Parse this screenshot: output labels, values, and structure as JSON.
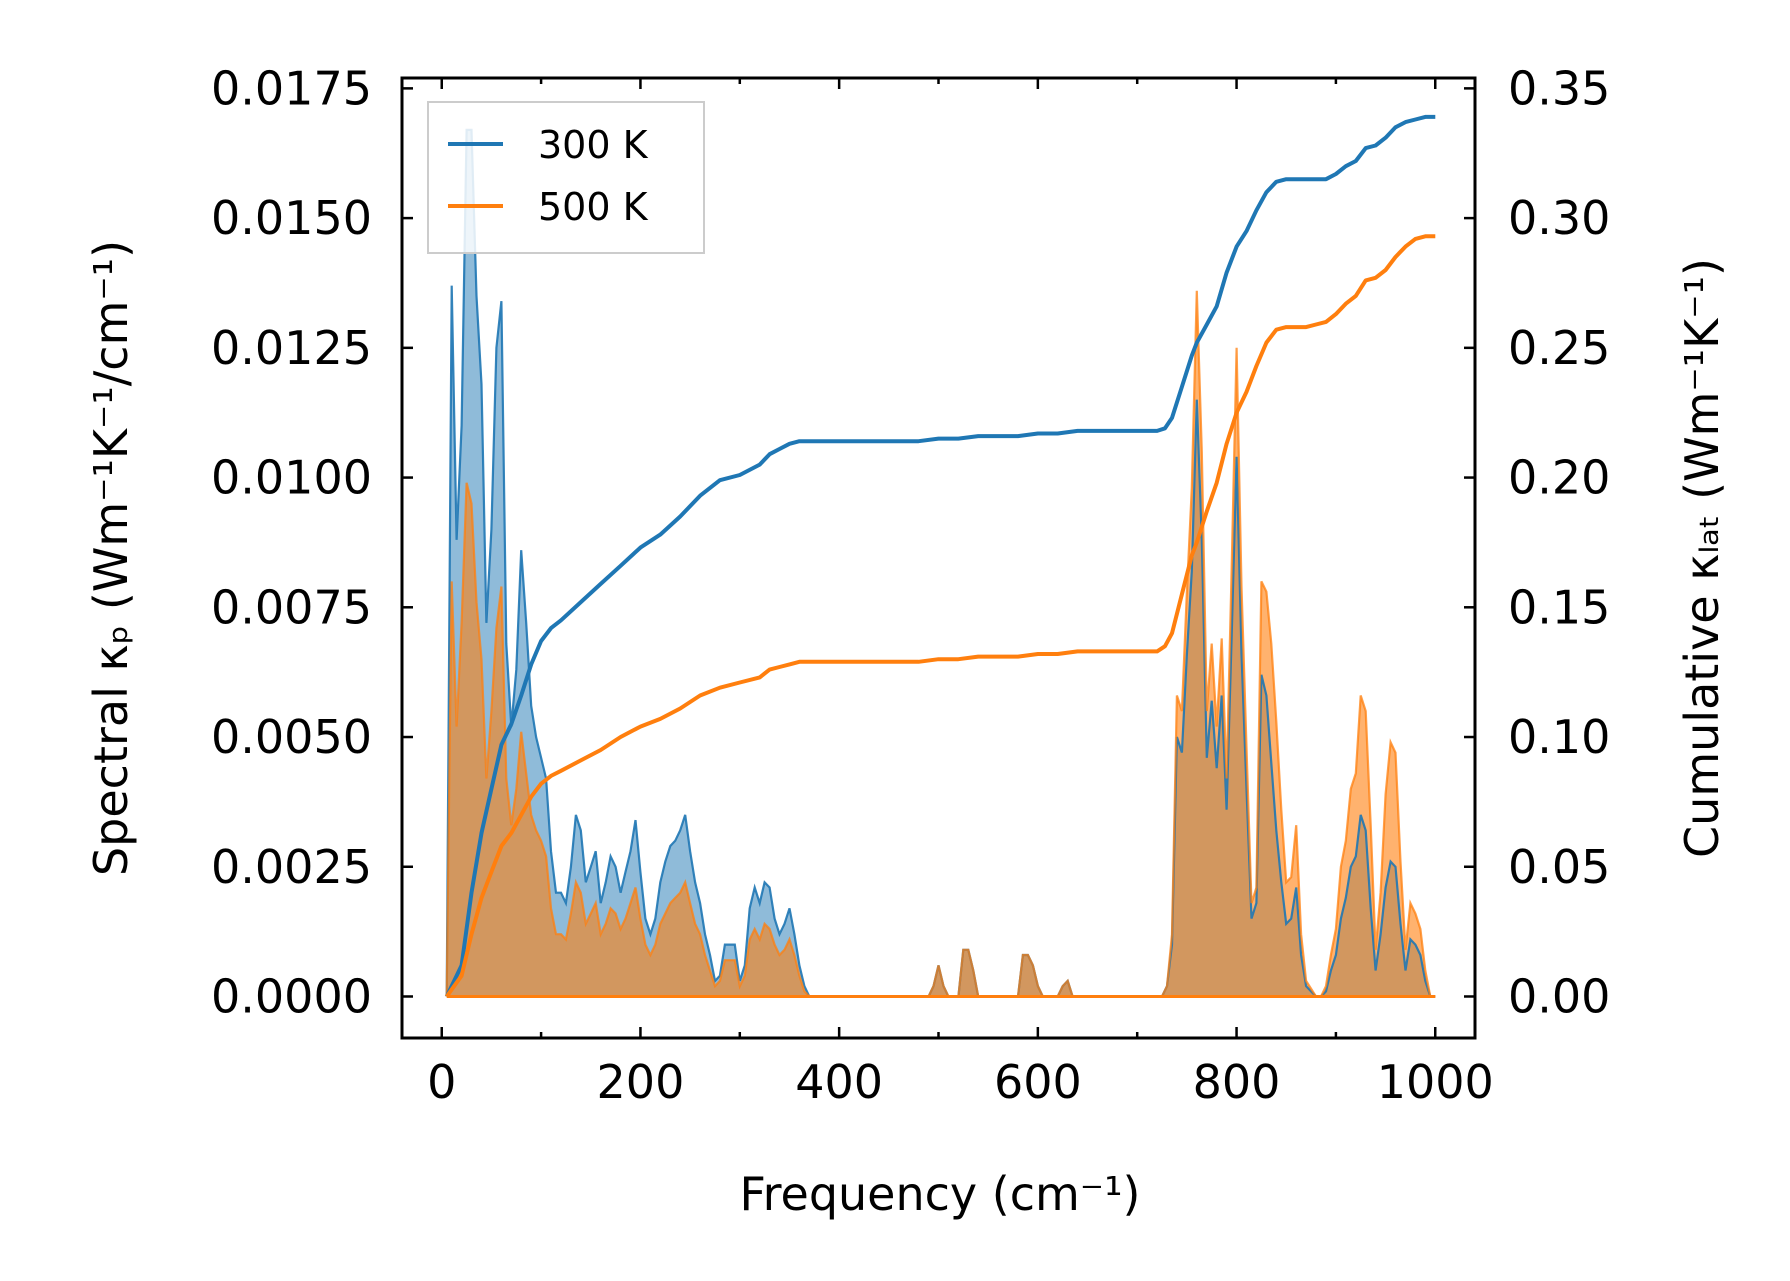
{
  "chart_data": {
    "type": "line",
    "xlabel": "Frequency (cm⁻¹)",
    "ylabel_left": "Spectral κₚ (Wm⁻¹K⁻¹/cm⁻¹)",
    "ylabel_right": "Cumulative κₗₐₜ (Wm⁻¹K⁻¹)",
    "xlim": [
      -40,
      1040
    ],
    "ylim_left": [
      -0.0008,
      0.0177
    ],
    "ylim_right": [
      -0.016,
      0.354
    ],
    "xticks": [
      0,
      200,
      400,
      600,
      800,
      1000
    ],
    "xtick_labels": [
      "0",
      "200",
      "400",
      "600",
      "800",
      "1000"
    ],
    "yticks_left": [
      0,
      0.0025,
      0.005,
      0.0075,
      0.01,
      0.0125,
      0.015,
      0.0175
    ],
    "ytick_labels_left": [
      "0.0000",
      "0.0025",
      "0.0050",
      "0.0075",
      "0.0100",
      "0.0125",
      "0.0150",
      "0.0175"
    ],
    "yticks_right": [
      0,
      0.05,
      0.1,
      0.15,
      0.2,
      0.25,
      0.3,
      0.35
    ],
    "ytick_labels_right": [
      "0.00",
      "0.05",
      "0.10",
      "0.15",
      "0.20",
      "0.25",
      "0.30",
      "0.35"
    ],
    "legend": {
      "position": "upper-left",
      "entries": [
        "300 K",
        "500 K"
      ]
    },
    "colors": {
      "s300": "#1f77b4",
      "s500": "#ff7f0e",
      "overlap": "#c49a6c"
    },
    "spectral": [
      {
        "name": "300 K",
        "x": [
          5,
          10,
          15,
          20,
          25,
          30,
          35,
          40,
          45,
          50,
          55,
          60,
          65,
          70,
          75,
          80,
          85,
          90,
          95,
          100,
          105,
          110,
          115,
          120,
          125,
          130,
          135,
          140,
          145,
          150,
          155,
          160,
          165,
          170,
          175,
          180,
          185,
          190,
          195,
          200,
          205,
          210,
          215,
          220,
          225,
          230,
          235,
          240,
          245,
          250,
          255,
          260,
          265,
          270,
          275,
          280,
          285,
          290,
          295,
          300,
          305,
          310,
          315,
          320,
          325,
          330,
          335,
          340,
          345,
          350,
          355,
          360,
          365,
          370,
          375,
          380,
          490,
          495,
          500,
          505,
          510,
          520,
          525,
          530,
          535,
          540,
          545,
          550,
          580,
          585,
          590,
          595,
          600,
          605,
          610,
          620,
          625,
          630,
          635,
          640,
          645,
          650,
          725,
          730,
          735,
          740,
          745,
          750,
          755,
          760,
          765,
          770,
          775,
          780,
          785,
          790,
          795,
          800,
          805,
          810,
          815,
          820,
          825,
          830,
          835,
          840,
          845,
          850,
          855,
          860,
          865,
          870,
          880,
          885,
          890,
          895,
          900,
          905,
          910,
          915,
          920,
          925,
          930,
          935,
          940,
          945,
          950,
          955,
          960,
          965,
          970,
          975,
          980,
          985,
          990,
          995,
          1000
        ],
        "y": [
          0,
          0.0137,
          0.0088,
          0.011,
          0.0167,
          0.0167,
          0.0135,
          0.0118,
          0.0072,
          0.009,
          0.0125,
          0.0134,
          0.0068,
          0.0052,
          0.0063,
          0.0086,
          0.0072,
          0.0056,
          0.005,
          0.0046,
          0.0042,
          0.0028,
          0.002,
          0.002,
          0.0018,
          0.0025,
          0.0035,
          0.0032,
          0.0022,
          0.0025,
          0.0028,
          0.0018,
          0.0022,
          0.0027,
          0.0025,
          0.002,
          0.0024,
          0.0028,
          0.0034,
          0.0024,
          0.0015,
          0.0012,
          0.0015,
          0.0022,
          0.0026,
          0.0029,
          0.003,
          0.0032,
          0.0035,
          0.0028,
          0.0022,
          0.0018,
          0.0012,
          0.0008,
          0.0003,
          0.0004,
          0.001,
          0.001,
          0.001,
          0.0003,
          0.0006,
          0.0017,
          0.0021,
          0.0018,
          0.0022,
          0.0021,
          0.0015,
          0.0012,
          0.0014,
          0.0017,
          0.0012,
          0.0006,
          0.0002,
          0,
          0,
          0,
          0,
          0.0002,
          0.0006,
          0.0002,
          0,
          0,
          0.0009,
          0.0009,
          0.0005,
          0,
          0,
          0,
          0,
          0.0008,
          0.0008,
          0.0006,
          0.0002,
          0,
          0,
          0,
          0.0002,
          0.0003,
          0,
          0,
          0,
          0,
          0,
          0.0002,
          0.001,
          0.005,
          0.0047,
          0.0066,
          0.0082,
          0.0115,
          0.0088,
          0.0046,
          0.0057,
          0.0044,
          0.0058,
          0.0036,
          0.0069,
          0.0104,
          0.0066,
          0.004,
          0.0015,
          0.0018,
          0.0062,
          0.0058,
          0.0045,
          0.0032,
          0.0022,
          0.0014,
          0.0015,
          0.0021,
          0.0008,
          0.0002,
          0,
          0,
          0.0001,
          0.0005,
          0.0008,
          0.0015,
          0.0019,
          0.0025,
          0.0027,
          0.0035,
          0.0032,
          0.0017,
          0.0005,
          0.0012,
          0.0021,
          0.0026,
          0.0025,
          0.0014,
          0.0005,
          0.0011,
          0.001,
          0.0008,
          0.0003,
          0,
          0
        ],
        "cumulative_x": [
          5,
          20,
          30,
          40,
          50,
          60,
          70,
          80,
          90,
          100,
          110,
          120,
          140,
          160,
          180,
          200,
          220,
          240,
          260,
          280,
          300,
          320,
          330,
          340,
          350,
          360,
          370,
          380,
          420,
          480,
          500,
          520,
          540,
          560,
          580,
          600,
          620,
          640,
          700,
          720,
          728,
          735,
          745,
          755,
          760,
          770,
          780,
          790,
          800,
          810,
          820,
          830,
          840,
          850,
          860,
          870,
          880,
          890,
          900,
          910,
          920,
          930,
          940,
          950,
          960,
          970,
          980,
          990,
          1000
        ],
        "cumulative_y": [
          0,
          0.012,
          0.04,
          0.063,
          0.08,
          0.097,
          0.105,
          0.116,
          0.128,
          0.137,
          0.142,
          0.145,
          0.152,
          0.159,
          0.166,
          0.173,
          0.178,
          0.185,
          0.193,
          0.199,
          0.201,
          0.205,
          0.209,
          0.211,
          0.213,
          0.214,
          0.214,
          0.214,
          0.214,
          0.214,
          0.215,
          0.215,
          0.216,
          0.216,
          0.216,
          0.217,
          0.217,
          0.218,
          0.218,
          0.218,
          0.219,
          0.223,
          0.235,
          0.247,
          0.252,
          0.259,
          0.266,
          0.279,
          0.289,
          0.295,
          0.303,
          0.31,
          0.314,
          0.315,
          0.315,
          0.315,
          0.315,
          0.315,
          0.317,
          0.32,
          0.322,
          0.327,
          0.328,
          0.331,
          0.335,
          0.337,
          0.338,
          0.339,
          0.339
        ]
      },
      {
        "name": "500 K",
        "x": [
          5,
          10,
          15,
          20,
          25,
          30,
          35,
          40,
          45,
          50,
          55,
          60,
          65,
          70,
          75,
          80,
          85,
          90,
          95,
          100,
          105,
          110,
          115,
          120,
          125,
          130,
          135,
          140,
          145,
          150,
          155,
          160,
          165,
          170,
          175,
          180,
          185,
          190,
          195,
          200,
          205,
          210,
          215,
          220,
          225,
          230,
          235,
          240,
          245,
          250,
          255,
          260,
          265,
          270,
          275,
          280,
          285,
          290,
          295,
          300,
          305,
          310,
          315,
          320,
          325,
          330,
          335,
          340,
          345,
          350,
          355,
          360,
          365,
          370,
          375,
          380,
          490,
          495,
          500,
          505,
          510,
          520,
          525,
          530,
          535,
          540,
          545,
          550,
          580,
          585,
          590,
          595,
          600,
          605,
          610,
          620,
          625,
          630,
          635,
          640,
          645,
          650,
          725,
          730,
          735,
          740,
          745,
          750,
          755,
          760,
          765,
          770,
          775,
          780,
          785,
          790,
          795,
          800,
          805,
          810,
          815,
          820,
          825,
          830,
          835,
          840,
          845,
          850,
          855,
          860,
          865,
          870,
          880,
          885,
          890,
          895,
          900,
          905,
          910,
          915,
          920,
          925,
          930,
          935,
          940,
          945,
          950,
          955,
          960,
          965,
          970,
          975,
          980,
          985,
          990,
          995,
          1000
        ],
        "y": [
          0,
          0.008,
          0.0052,
          0.0072,
          0.0099,
          0.0095,
          0.0076,
          0.0065,
          0.0042,
          0.0055,
          0.0071,
          0.0079,
          0.0042,
          0.0033,
          0.004,
          0.0051,
          0.0043,
          0.0035,
          0.0032,
          0.003,
          0.0027,
          0.0017,
          0.0012,
          0.0012,
          0.0011,
          0.0016,
          0.0022,
          0.002,
          0.0014,
          0.0016,
          0.0018,
          0.0012,
          0.0014,
          0.0017,
          0.0016,
          0.0013,
          0.0015,
          0.0018,
          0.0021,
          0.0015,
          0.001,
          0.0008,
          0.001,
          0.0014,
          0.0016,
          0.0018,
          0.0019,
          0.002,
          0.0022,
          0.0018,
          0.0014,
          0.0012,
          0.0008,
          0.0005,
          0.0002,
          0.0003,
          0.0007,
          0.0007,
          0.0007,
          0.0002,
          0.0004,
          0.0011,
          0.0013,
          0.0011,
          0.0014,
          0.0013,
          0.001,
          0.0008,
          0.0009,
          0.0011,
          0.0008,
          0.0004,
          0.0001,
          0,
          0,
          0,
          0,
          0.0002,
          0.0006,
          0.0002,
          0,
          0,
          0.0009,
          0.0009,
          0.0005,
          0,
          0,
          0,
          0,
          0.0008,
          0.0008,
          0.0006,
          0.0002,
          0,
          0,
          0,
          0.0002,
          0.0003,
          0,
          0,
          0,
          0,
          0,
          0.0002,
          0.0012,
          0.0058,
          0.0055,
          0.0078,
          0.0098,
          0.0136,
          0.0105,
          0.0055,
          0.0068,
          0.0052,
          0.0069,
          0.0042,
          0.0082,
          0.0125,
          0.0079,
          0.0048,
          0.0018,
          0.0021,
          0.008,
          0.0078,
          0.0068,
          0.0053,
          0.0036,
          0.0022,
          0.0023,
          0.0033,
          0.0012,
          0.0003,
          0,
          0,
          0.0002,
          0.0008,
          0.0013,
          0.0025,
          0.003,
          0.004,
          0.0043,
          0.0058,
          0.0055,
          0.0033,
          0.0009,
          0.002,
          0.0039,
          0.0049,
          0.0047,
          0.0026,
          0.0009,
          0.0018,
          0.0016,
          0.0013,
          0.0005,
          0,
          0
        ],
        "cumulative_x": [
          5,
          20,
          30,
          40,
          50,
          60,
          70,
          80,
          90,
          100,
          110,
          120,
          140,
          160,
          180,
          200,
          220,
          240,
          260,
          280,
          300,
          320,
          330,
          340,
          350,
          360,
          370,
          380,
          420,
          480,
          500,
          520,
          540,
          560,
          580,
          600,
          620,
          640,
          700,
          720,
          728,
          735,
          745,
          755,
          760,
          770,
          780,
          790,
          800,
          810,
          820,
          830,
          840,
          850,
          860,
          870,
          880,
          890,
          900,
          910,
          920,
          930,
          940,
          950,
          960,
          970,
          980,
          990,
          1000
        ],
        "cumulative_y": [
          0,
          0.008,
          0.024,
          0.038,
          0.048,
          0.058,
          0.063,
          0.07,
          0.077,
          0.082,
          0.085,
          0.087,
          0.091,
          0.095,
          0.1,
          0.104,
          0.107,
          0.111,
          0.116,
          0.119,
          0.121,
          0.123,
          0.126,
          0.127,
          0.128,
          0.129,
          0.129,
          0.129,
          0.129,
          0.129,
          0.13,
          0.13,
          0.131,
          0.131,
          0.131,
          0.132,
          0.132,
          0.133,
          0.133,
          0.133,
          0.135,
          0.14,
          0.155,
          0.17,
          0.175,
          0.187,
          0.198,
          0.213,
          0.225,
          0.233,
          0.243,
          0.252,
          0.257,
          0.258,
          0.258,
          0.258,
          0.259,
          0.26,
          0.263,
          0.267,
          0.27,
          0.276,
          0.277,
          0.28,
          0.285,
          0.289,
          0.292,
          0.293,
          0.293
        ]
      }
    ]
  }
}
